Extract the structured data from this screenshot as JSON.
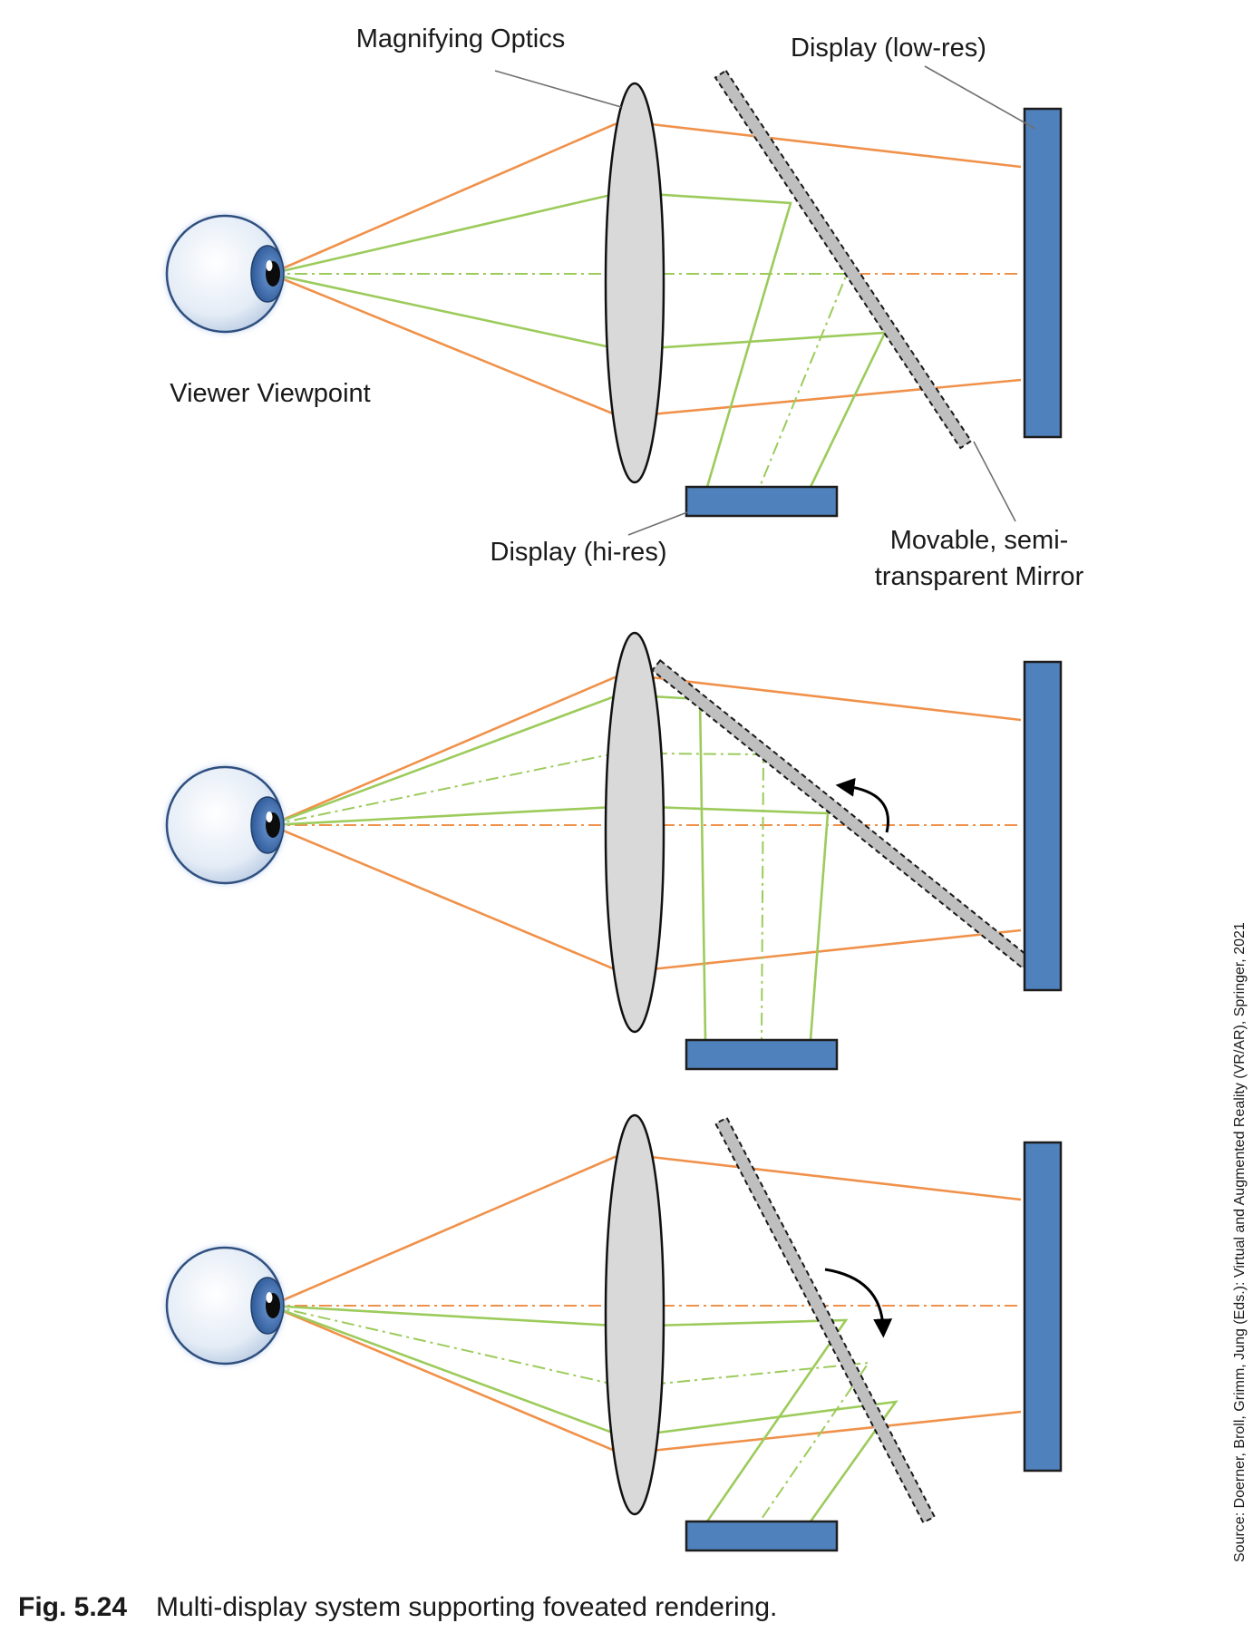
{
  "labels": {
    "magnifying_optics": "Magnifying Optics",
    "display_low_res": "Display (low-res)",
    "viewer_viewpoint": "Viewer Viewpoint",
    "display_hi_res": "Display (hi-res)",
    "mirror_line1": "Movable, semi-",
    "mirror_line2": "transparent Mirror"
  },
  "caption": {
    "number": "Fig. 5.24",
    "text": "Multi-display system supporting foveated rendering."
  },
  "source": "Source: Doerner, Broll, Grimm, Jung (Eds.): Virtual and Augmented Reality (VR/AR), Springer, 2021",
  "colors": {
    "display": "#4f81bd",
    "lens": "#d9d9d9",
    "ray_low_res": "#f0914a",
    "ray_hi_res": "#9ccb5b",
    "mirror": "#bfbfbf"
  },
  "icons": [
    "eye-icon",
    "lens-icon",
    "mirror-icon",
    "rotate-arrow-icon"
  ]
}
